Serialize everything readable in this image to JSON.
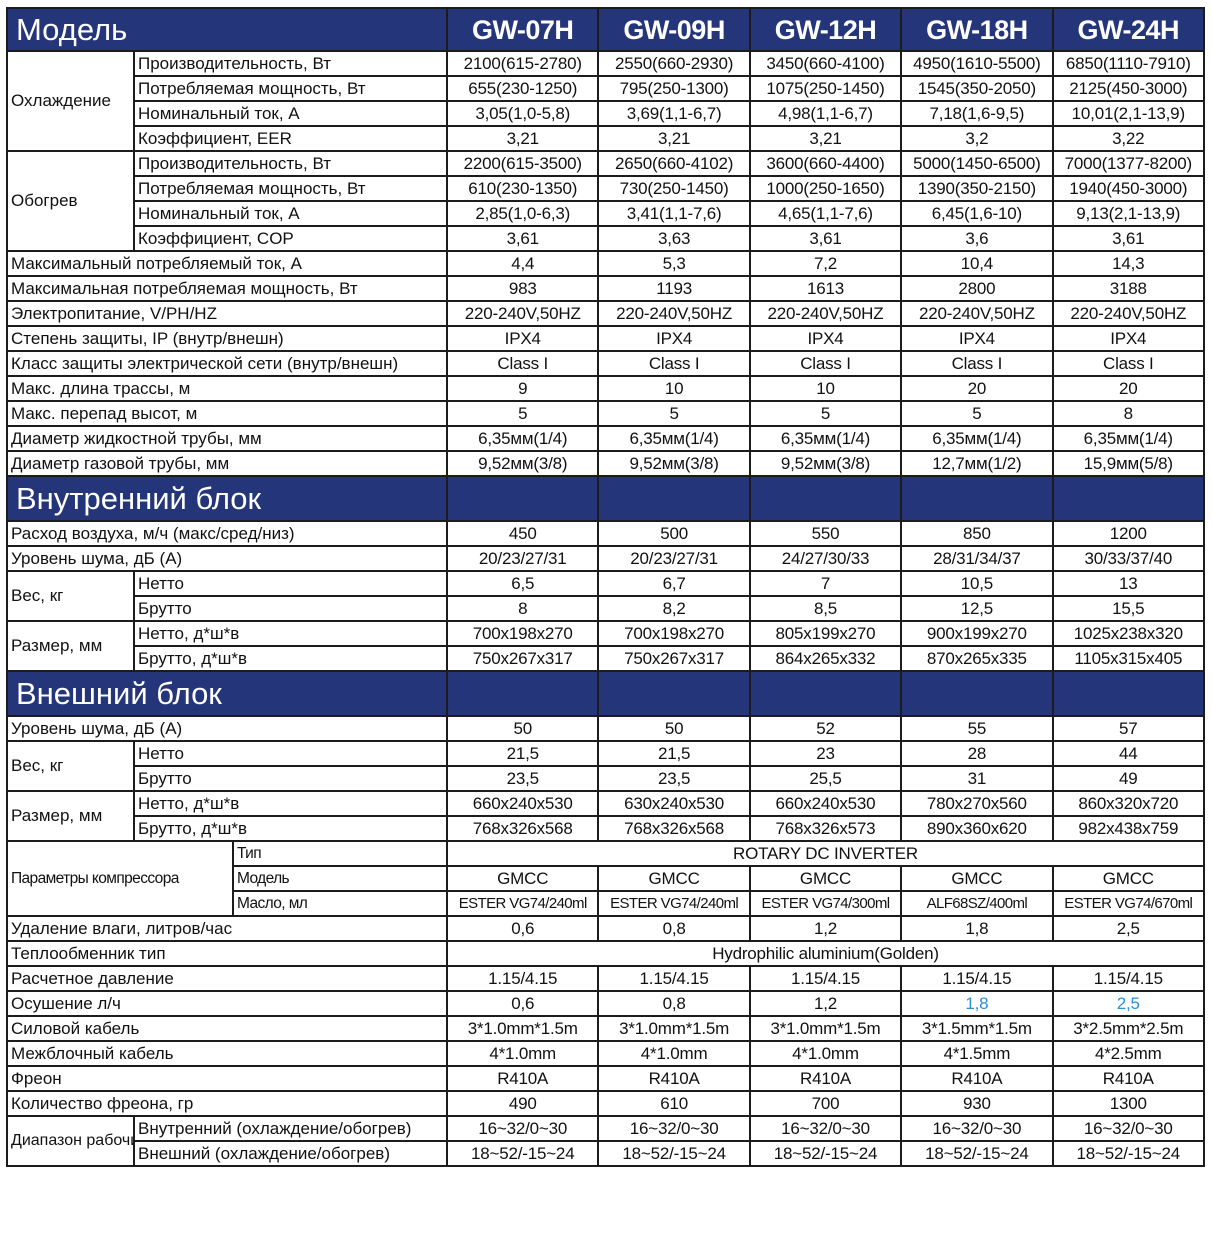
{
  "header": {
    "title": "Модель",
    "models": [
      "GW-07H",
      "GW-09H",
      "GW-12H",
      "GW-18H",
      "GW-24H"
    ]
  },
  "colors": {
    "section_bg": "#25357a",
    "highlight": "#2a8fd6"
  },
  "sections": [
    {
      "title": "",
      "rows": [
        {
          "group": "Охлаждение",
          "items": [
            {
              "label": "Производительность, Вт",
              "values": [
                "2100(615-2780)",
                "2550(660-2930)",
                "3450(660-4100)",
                "4950(1610-5500)",
                "6850(1110-7910)"
              ]
            },
            {
              "label": "Потребляемая мощность, Вт",
              "values": [
                "655(230-1250)",
                "795(250-1300)",
                "1075(250-1450)",
                "1545(350-2050)",
                "2125(450-3000)"
              ]
            },
            {
              "label": "Номинальный ток, А",
              "values": [
                "3,05(1,0-5,8)",
                "3,69(1,1-6,7)",
                "4,98(1,1-6,7)",
                "7,18(1,6-9,5)",
                "10,01(2,1-13,9)"
              ]
            },
            {
              "label": "Коэффициент, EER",
              "values": [
                "3,21",
                "3,21",
                "3,21",
                "3,2",
                "3,22"
              ]
            }
          ]
        },
        {
          "group": "Обогрев",
          "items": [
            {
              "label": "Производительность, Вт",
              "values": [
                "2200(615-3500)",
                "2650(660-4102)",
                "3600(660-4400)",
                "5000(1450-6500)",
                "7000(1377-8200)"
              ]
            },
            {
              "label": "Потребляемая мощность, Вт",
              "values": [
                "610(230-1350)",
                "730(250-1450)",
                "1000(250-1650)",
                "1390(350-2150)",
                "1940(450-3000)"
              ]
            },
            {
              "label": "Номинальный ток, А",
              "values": [
                "2,85(1,0-6,3)",
                "3,41(1,1-7,6)",
                "4,65(1,1-7,6)",
                "6,45(1,6-10)",
                "9,13(2,1-13,9)"
              ]
            },
            {
              "label": "Коэффициент, COP",
              "values": [
                "3,61",
                "3,63",
                "3,61",
                "3,6",
                "3,61"
              ]
            }
          ]
        },
        {
          "label": "Максимальный потребляемый ток, А",
          "values": [
            "4,4",
            "5,3",
            "7,2",
            "10,4",
            "14,3"
          ]
        },
        {
          "label": "Максимальная потребляемая мощность, Вт",
          "values": [
            "983",
            "1193",
            "1613",
            "2800",
            "3188"
          ]
        },
        {
          "label": "Электропитание, V/PH/HZ",
          "values": [
            "220-240V,50HZ",
            "220-240V,50HZ",
            "220-240V,50HZ",
            "220-240V,50HZ",
            "220-240V,50HZ"
          ]
        },
        {
          "label": "Степень защиты, IP (внутр/внешн)",
          "values": [
            "IPX4",
            "IPX4",
            "IPX4",
            "IPX4",
            "IPX4"
          ]
        },
        {
          "label": "Класс защиты электрической сети (внутр/внешн)",
          "values": [
            "Class I",
            "Class I",
            "Class I",
            "Class I",
            "Class I"
          ]
        },
        {
          "label": "Макс. длина трассы, м",
          "values": [
            "9",
            "10",
            "10",
            "20",
            "20"
          ]
        },
        {
          "label": "Макс. перепад высот, м",
          "values": [
            "5",
            "5",
            "5",
            "5",
            "8"
          ]
        },
        {
          "label": "Диаметр жидкостной трубы, мм",
          "values": [
            "6,35мм(1/4)",
            "6,35мм(1/4)",
            "6,35мм(1/4)",
            "6,35мм(1/4)",
            "6,35мм(1/4)"
          ]
        },
        {
          "label": "Диаметр газовой трубы, мм",
          "values": [
            "9,52мм(3/8)",
            "9,52мм(3/8)",
            "9,52мм(3/8)",
            "12,7мм(1/2)",
            "15,9мм(5/8)"
          ]
        }
      ]
    },
    {
      "title": "Внутренний блок",
      "rows": [
        {
          "label": "Расход воздуха, м/ч (макс/сред/низ)",
          "values": [
            "450",
            "500",
            "550",
            "850",
            "1200"
          ]
        },
        {
          "label": "Уровень шума, дБ (А)",
          "values": [
            "20/23/27/31",
            "20/23/27/31",
            "24/27/30/33",
            "28/31/34/37",
            "30/33/37/40"
          ]
        },
        {
          "group": "Вес, кг",
          "items": [
            {
              "label": "Нетто",
              "values": [
                "6,5",
                "6,7",
                "7",
                "10,5",
                "13"
              ]
            },
            {
              "label": "Брутто",
              "values": [
                "8",
                "8,2",
                "8,5",
                "12,5",
                "15,5"
              ]
            }
          ]
        },
        {
          "group": "Размер, мм",
          "items": [
            {
              "label": "Нетто, д*ш*в",
              "values": [
                "700x198x270",
                "700x198x270",
                "805x199x270",
                "900x199x270",
                "1025x238x320"
              ]
            },
            {
              "label": "Брутто, д*ш*в",
              "values": [
                "750x267x317",
                "750x267x317",
                "864x265x332",
                "870x265x335",
                "1105x315x405"
              ]
            }
          ]
        }
      ]
    },
    {
      "title": "Внешний блок",
      "rows": [
        {
          "label": "Уровень шума, дБ (А)",
          "values": [
            "50",
            "50",
            "52",
            "55",
            "57"
          ]
        },
        {
          "group": "Вес, кг",
          "items": [
            {
              "label": "Нетто",
              "values": [
                "21,5",
                "21,5",
                "23",
                "28",
                "44"
              ]
            },
            {
              "label": "Брутто",
              "values": [
                "23,5",
                "23,5",
                "25,5",
                "31",
                "49"
              ]
            }
          ]
        },
        {
          "group": "Размер, мм",
          "items": [
            {
              "label": "Нетто, д*ш*в",
              "values": [
                "660x240x530",
                "630x240x530",
                "660x240x530",
                "780x270x560",
                "860x320x720"
              ]
            },
            {
              "label": "Брутто, д*ш*в",
              "values": [
                "768x326x568",
                "768x326x568",
                "768x326x573",
                "890x360x620",
                "982x438x759"
              ]
            }
          ]
        },
        {
          "group": "Параметры компрессора",
          "wide": true,
          "items": [
            {
              "label": "Тип",
              "span": "ROTARY DC INVERTER"
            },
            {
              "label": "Модель",
              "values": [
                "GMCC",
                "GMCC",
                "GMCC",
                "GMCC",
                "GMCC"
              ]
            },
            {
              "label": "Масло, мл",
              "small": true,
              "values": [
                "ESTER VG74/240ml",
                "ESTER VG74/240ml",
                "ESTER VG74/300ml",
                "ALF68SZ/400ml",
                "ESTER VG74/670ml"
              ]
            }
          ]
        },
        {
          "label": "Удаление влаги, литров/час",
          "values": [
            "0,6",
            "0,8",
            "1,2",
            "1,8",
            "2,5"
          ]
        },
        {
          "label": "Теплообменник тип",
          "span": "Hydrophilic aluminium(Golden)"
        },
        {
          "label": "Расчетное давление",
          "values": [
            "1.15/4.15",
            "1.15/4.15",
            "1.15/4.15",
            "1.15/4.15",
            "1.15/4.15"
          ]
        },
        {
          "label": "Осушение л/ч",
          "values": [
            "0,6",
            "0,8",
            "1,2",
            "1,8",
            "2,5"
          ],
          "highlight": [
            3,
            4
          ]
        },
        {
          "label": "Силовой кабель",
          "values": [
            "3*1.0mm*1.5m",
            "3*1.0mm*1.5m",
            "3*1.0mm*1.5m",
            "3*1.5mm*1.5m",
            "3*2.5mm*2.5m"
          ]
        },
        {
          "label": "Межблочный кабель",
          "values": [
            "4*1.0mm",
            "4*1.0mm",
            "4*1.0mm",
            "4*1.5mm",
            "4*2.5mm"
          ]
        },
        {
          "label": "Фреон",
          "values": [
            "R410A",
            "R410A",
            "R410A",
            "R410A",
            "R410A"
          ]
        },
        {
          "label": "Количество фреона, гр",
          "values": [
            "490",
            "610",
            "700",
            "930",
            "1300"
          ]
        },
        {
          "group": "Диапазон рабочих температур,°С",
          "tiny": true,
          "items": [
            {
              "label": "Внутренний (охлаждение/обогрев)",
              "values": [
                "16~32/0~30",
                "16~32/0~30",
                "16~32/0~30",
                "16~32/0~30",
                "16~32/0~30"
              ]
            },
            {
              "label": "Внешний (охлаждение/обогрев)",
              "values": [
                "18~52/-15~24",
                "18~52/-15~24",
                "18~52/-15~24",
                "18~52/-15~24",
                "18~52/-15~24"
              ]
            }
          ]
        }
      ]
    }
  ]
}
